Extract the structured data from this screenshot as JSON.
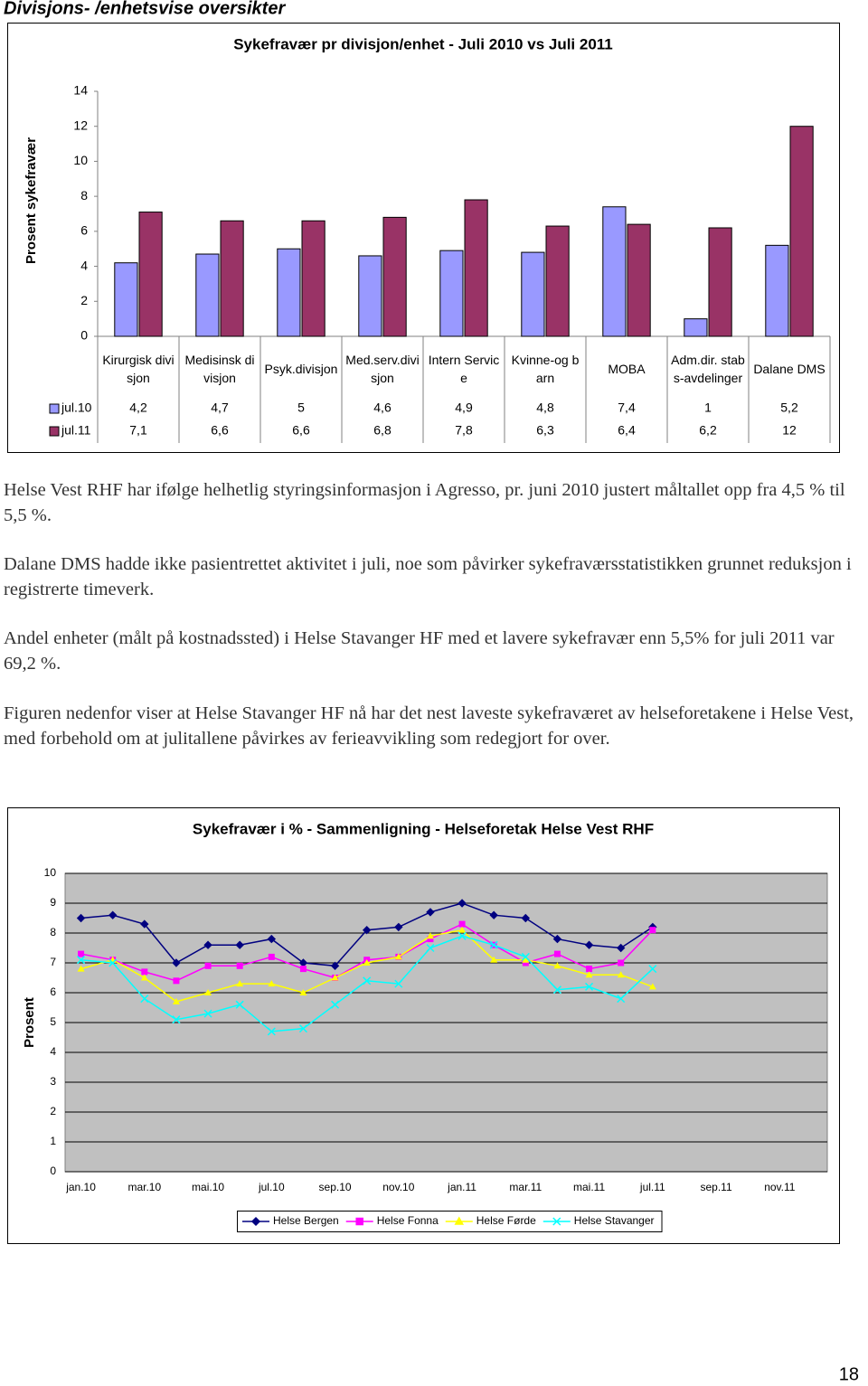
{
  "heading": "Divisjons- /enhetsvise oversikter",
  "chart_data": [
    {
      "type": "bar",
      "title": "Sykefravær pr divisjon/enhet - Juli 2010 vs Juli 2011",
      "ylabel": "Prosent sykefravær",
      "categories": [
        "Kirurgisk divisjon",
        "Medisinsk divisjon",
        "Psyk.divisjon",
        "Med.serv.divisjon",
        "Intern Service",
        "Kvinne-og barn",
        "MOBA",
        "Adm.dir. stabs-avdelinger",
        "Dalane DMS"
      ],
      "series": [
        {
          "name": "jul.10",
          "color": "#9999ff",
          "values": [
            4.2,
            4.7,
            5,
            4.6,
            4.9,
            4.8,
            7.4,
            1,
            5.2
          ],
          "value_labels": [
            "4,2",
            "4,7",
            "5",
            "4,6",
            "4,9",
            "4,8",
            "7,4",
            "1",
            "5,2"
          ]
        },
        {
          "name": "jul.11",
          "color": "#993366",
          "values": [
            7.1,
            6.6,
            6.6,
            6.8,
            7.8,
            6.3,
            6.4,
            6.2,
            12
          ],
          "value_labels": [
            "7,1",
            "6,6",
            "6,6",
            "6,8",
            "7,8",
            "6,3",
            "6,4",
            "6,2",
            "12"
          ]
        }
      ],
      "ylim": [
        0,
        14
      ],
      "yticks": [
        0,
        2,
        4,
        6,
        8,
        10,
        12,
        14
      ],
      "grid": false,
      "legend": "data-table"
    },
    {
      "type": "line",
      "title": "Sykefravær i % - Sammenligning - Helseforetak Helse Vest RHF",
      "ylabel": "Prosent",
      "categories": [
        "jan.10",
        null,
        "mar.10",
        null,
        "mai.10",
        null,
        "jul.10",
        null,
        "sep.10",
        null,
        "nov.10",
        null,
        "jan.11",
        null,
        "mar.11",
        null,
        "mai.11",
        null,
        "jul.11",
        null,
        "sep.11",
        null,
        "nov.11",
        null
      ],
      "series": [
        {
          "name": "Helse Bergen",
          "color": "#000080",
          "marker": "diamond",
          "values": [
            8.5,
            8.6,
            8.3,
            7.0,
            7.6,
            7.6,
            7.8,
            7.0,
            6.9,
            8.1,
            8.2,
            8.7,
            9.0,
            8.6,
            8.5,
            7.8,
            7.6,
            7.5,
            8.2,
            null,
            null,
            null,
            null,
            null
          ]
        },
        {
          "name": "Helse Fonna",
          "color": "#ff00ff",
          "marker": "square",
          "values": [
            7.3,
            7.1,
            6.7,
            6.4,
            6.9,
            6.9,
            7.2,
            6.8,
            6.5,
            7.1,
            7.2,
            7.8,
            8.3,
            7.6,
            7.0,
            7.3,
            6.8,
            7.0,
            8.1,
            null,
            null,
            null,
            null,
            null
          ]
        },
        {
          "name": "Helse Førde",
          "color": "#ffff00",
          "marker": "triangle",
          "values": [
            6.8,
            7.1,
            6.5,
            5.7,
            6.0,
            6.3,
            6.3,
            6.0,
            6.5,
            7.0,
            7.2,
            7.9,
            8.1,
            7.1,
            7.1,
            6.9,
            6.6,
            6.6,
            6.2,
            null,
            null,
            null,
            null,
            null
          ]
        },
        {
          "name": "Helse Stavanger",
          "color": "#00ffff",
          "marker": "x",
          "values": [
            7.1,
            7.0,
            5.8,
            5.1,
            5.3,
            5.6,
            4.7,
            4.8,
            5.6,
            6.4,
            6.3,
            7.5,
            7.9,
            7.6,
            7.2,
            6.1,
            6.2,
            5.8,
            6.8,
            null,
            null,
            null,
            null,
            null
          ]
        }
      ],
      "ylim": [
        0,
        10
      ],
      "yticks": [
        0,
        1,
        2,
        3,
        4,
        5,
        6,
        7,
        8,
        9,
        10
      ],
      "grid": true,
      "legend": "bottom"
    }
  ],
  "paragraphs": [
    "Helse Vest RHF har ifølge helhetlig styringsinformasjon i Agresso, pr. juni 2010 justert måltallet opp fra 4,5 % til 5,5 %.",
    "Dalane DMS hadde ikke pasientrettet aktivitet i juli, noe som påvirker sykefraværsstatistikken grunnet reduksjon i registrerte timeverk.",
    "Andel enheter (målt på kostnadssted) i Helse Stavanger HF med et lavere sykefravær enn 5,5% for juli 2011 var 69,2 %.",
    "Figuren nedenfor viser at Helse Stavanger HF nå har det nest laveste sykefraværet av helseforetakene i Helse Vest, med forbehold om at julitallene påvirkes av ferieavvikling som redegjort for over."
  ],
  "page_number": "18"
}
